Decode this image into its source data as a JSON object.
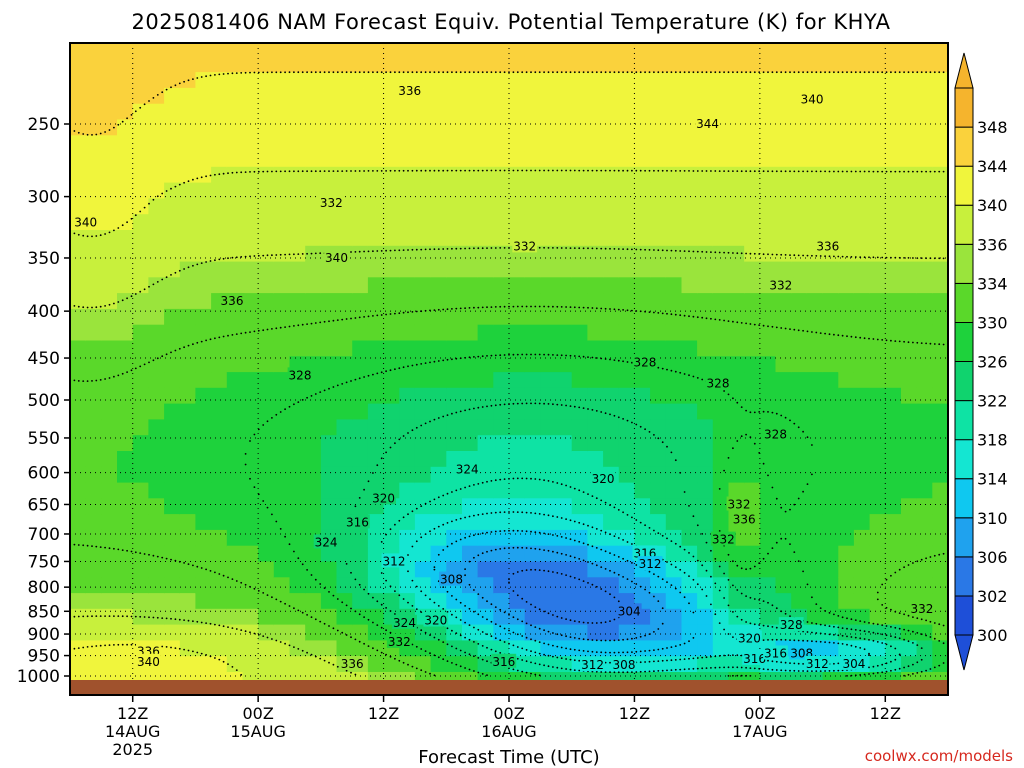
{
  "title": "2025081406 NAM Forecast Equiv. Potential Temperature (K) for KHYA",
  "credit": "coolwx.com/models",
  "chart_data": {
    "type": "heatmap",
    "title": "2025081406 NAM Forecast Equiv. Potential Temperature (K) for KHYA",
    "xlabel": "Forecast Time (UTC)",
    "ylabel": "",
    "x_unit": "forecast hour",
    "xlim": [
      0,
      84
    ],
    "y_unit": "hPa",
    "ylim": [
      1000,
      200
    ],
    "y_scale": "log-pressure",
    "y_ticks": [
      250,
      300,
      350,
      400,
      450,
      500,
      550,
      600,
      650,
      700,
      750,
      800,
      850,
      900,
      950,
      1000
    ],
    "x_ticks": [
      {
        "x": 6,
        "label": "12Z",
        "sub": [
          "14AUG",
          "2025"
        ]
      },
      {
        "x": 18,
        "label": "00Z",
        "sub": [
          "15AUG"
        ]
      },
      {
        "x": 30,
        "label": "12Z",
        "sub": []
      },
      {
        "x": 42,
        "label": "00Z",
        "sub": [
          "16AUG"
        ]
      },
      {
        "x": 54,
        "label": "12Z",
        "sub": []
      },
      {
        "x": 66,
        "label": "00Z",
        "sub": [
          "17AUG"
        ]
      },
      {
        "x": 78,
        "label": "12Z",
        "sub": []
      }
    ],
    "grid": "dotted",
    "colorbar": {
      "levels": [
        300,
        302,
        306,
        310,
        314,
        318,
        322,
        326,
        330,
        334,
        336,
        340,
        344,
        348
      ],
      "colors": [
        "#1e4fd8",
        "#2a78e6",
        "#1fa2ee",
        "#0fc8f0",
        "#14e6d2",
        "#0ee3a4",
        "#10d36e",
        "#1ed23c",
        "#5ad82a",
        "#9ae43c",
        "#c8f03c",
        "#f0f53c",
        "#fad23c",
        "#f5b42d"
      ],
      "extend": "both",
      "position": "right"
    },
    "contour_labels": [
      {
        "x": 25.5,
        "p": 350,
        "t": "340"
      },
      {
        "x": 61,
        "p": 250,
        "t": "344"
      },
      {
        "x": 1.5,
        "p": 320,
        "t": "340"
      },
      {
        "x": 32.5,
        "p": 230,
        "t": "336"
      },
      {
        "x": 71,
        "p": 235,
        "t": "340"
      },
      {
        "x": 15.5,
        "p": 390,
        "t": "336"
      },
      {
        "x": 72.5,
        "p": 340,
        "t": "336"
      },
      {
        "x": 43.5,
        "p": 340,
        "t": "332"
      },
      {
        "x": 68,
        "p": 375,
        "t": "332"
      },
      {
        "x": 25,
        "p": 305,
        "t": "332"
      },
      {
        "x": 55,
        "p": 455,
        "t": "328"
      },
      {
        "x": 22,
        "p": 470,
        "t": "328"
      },
      {
        "x": 62,
        "p": 480,
        "t": "328"
      },
      {
        "x": 67.5,
        "p": 545,
        "t": "328"
      },
      {
        "x": 38,
        "p": 595,
        "t": "324"
      },
      {
        "x": 51,
        "p": 610,
        "t": "320"
      },
      {
        "x": 30,
        "p": 640,
        "t": "320"
      },
      {
        "x": 27.5,
        "p": 680,
        "t": "316"
      },
      {
        "x": 24.5,
        "p": 715,
        "t": "324"
      },
      {
        "x": 31,
        "p": 750,
        "t": "312"
      },
      {
        "x": 36.5,
        "p": 785,
        "t": "308"
      },
      {
        "x": 55,
        "p": 735,
        "t": "316"
      },
      {
        "x": 55.5,
        "p": 755,
        "t": "312"
      },
      {
        "x": 64,
        "p": 650,
        "t": "332"
      },
      {
        "x": 64.5,
        "p": 675,
        "t": "336"
      },
      {
        "x": 62.5,
        "p": 710,
        "t": "332"
      },
      {
        "x": 53.5,
        "p": 850,
        "t": "304"
      },
      {
        "x": 32,
        "p": 875,
        "t": "324"
      },
      {
        "x": 35,
        "p": 870,
        "t": "320"
      },
      {
        "x": 31.5,
        "p": 918,
        "t": "332"
      },
      {
        "x": 69,
        "p": 880,
        "t": "328"
      },
      {
        "x": 81.5,
        "p": 845,
        "t": "332"
      },
      {
        "x": 65,
        "p": 910,
        "t": "320"
      },
      {
        "x": 7.5,
        "p": 940,
        "t": "336"
      },
      {
        "x": 7.5,
        "p": 965,
        "t": "340"
      },
      {
        "x": 27,
        "p": 970,
        "t": "336"
      },
      {
        "x": 41.5,
        "p": 965,
        "t": "316"
      },
      {
        "x": 50,
        "p": 973,
        "t": "312"
      },
      {
        "x": 53,
        "p": 973,
        "t": "308"
      },
      {
        "x": 65.5,
        "p": 958,
        "t": "316"
      },
      {
        "x": 67.5,
        "p": 945,
        "t": "316"
      },
      {
        "x": 70,
        "p": 945,
        "t": "308"
      },
      {
        "x": 71.5,
        "p": 970,
        "t": "312"
      },
      {
        "x": 75,
        "p": 970,
        "t": "304"
      }
    ]
  }
}
